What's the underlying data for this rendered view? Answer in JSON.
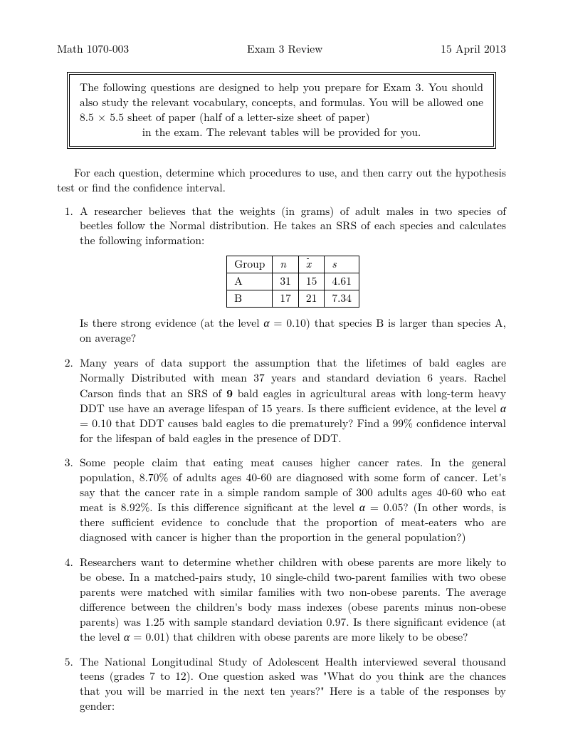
{
  "header": {
    "left": "Math 1070-003",
    "center": "Exam 3 Review",
    "right": "15 April 2013"
  },
  "box": {
    "line1": "The following questions are designed to help you prepare for Exam 3. You should also study the relevant vocabulary, concepts, and formulas. You will be allowed one 8.5 × 5.5 sheet of paper (half of a letter-size sheet of paper)",
    "line2": "in the exam. The relevant tables will be provided for you."
  },
  "intro": "For each question, determine which procedures to use, and then carry out the hypothesis test or find the confidence interval.",
  "q1": {
    "pre": "A researcher believes that the weights (in grams) of adult males in two species of beetles follow the Normal distribution.  He takes an SRS of each species and calculates the following information:",
    "table": {
      "headers": [
        "Group",
        "n",
        "x̄",
        "s"
      ],
      "rows": [
        [
          "A",
          "31",
          "15",
          "4.61"
        ],
        [
          "B",
          "17",
          "21",
          "7.34"
        ]
      ]
    },
    "post_a": "Is there strong evidence (at the level ",
    "post_alpha": "α",
    "post_b": " = 0.10) that species B is larger than species A, on average?"
  },
  "q2": {
    "a": "Many years of data support the assumption that the lifetimes of bald eagles are Normally Distributed with mean 37 years and standard deviation 6 years. Rachel Carson finds that an SRS of ",
    "bold9": "9",
    "b": " bald eagles in agricultural areas with long-term heavy DDT use have an average lifespan of 15 years. Is there sufficient evidence, at the level ",
    "alpha": "α",
    "c": " = 0.10 that DDT causes bald eagles to die prematurely?  Find a 99% confidence interval for the lifespan of bald eagles in the presence of DDT."
  },
  "q3": {
    "a": "Some people claim that eating meat causes higher cancer rates. In the general population, 8.70% of adults ages 40-60 are diagnosed with some form of cancer. Let's say that the cancer rate in a simple random sample of 300 adults ages 40-60 who eat meat is 8.92%. Is this difference significant at the level ",
    "alpha": "α",
    "b": " = 0.05? (In other words, is there sufficient evidence to conclude that the proportion of meat-eaters who are diagnosed with cancer is higher than the proportion in the general population?)"
  },
  "q4": {
    "a": "Researchers want to determine whether children with obese parents are more likely to be obese. In a matched-pairs study, 10 single-child two-parent families with two obese parents were matched with similar families with two non-obese parents. The average difference between the children's body mass indexes (obese parents minus non-obese parents) was 1.25 with sample standard deviation 0.97. Is there significant evidence (at the level ",
    "alpha": "α",
    "b": " = 0.01) that children with obese parents are more likely to be obese?"
  },
  "q5": "The National Longitudinal Study of Adolescent Health interviewed several thousand teens (grades 7 to 12). One question asked was \"What do you think are the chances that you will be married in the next ten years?\" Here is a table of the responses by gender:"
}
